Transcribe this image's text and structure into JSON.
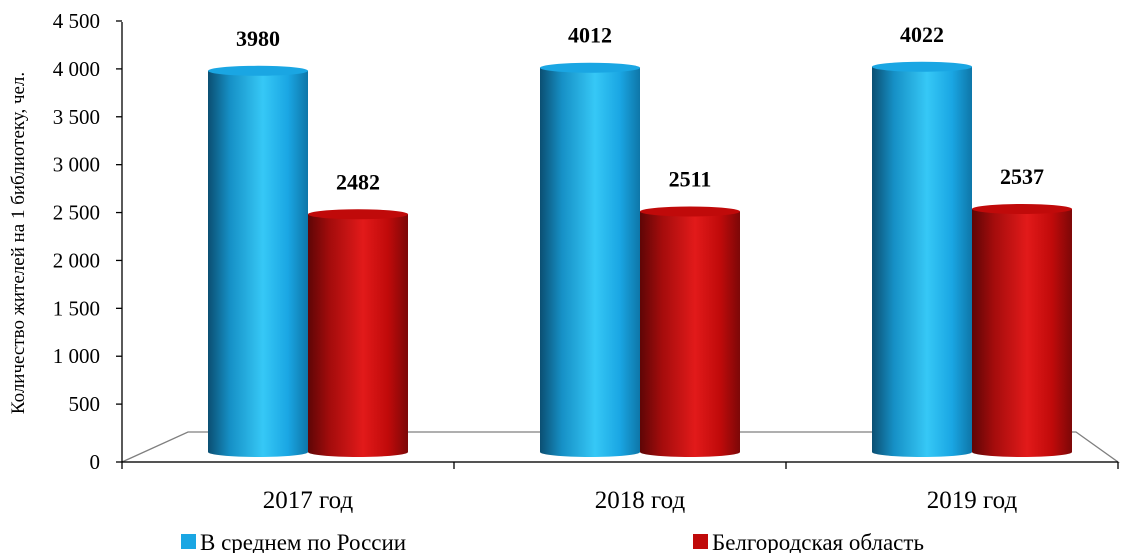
{
  "chart_data": {
    "type": "bar",
    "title": "",
    "xlabel": "",
    "ylabel": "Количество жителей на 1 библиотеку, чел.",
    "ylim": [
      0,
      4500
    ],
    "yticks": [
      0,
      500,
      1000,
      1500,
      2000,
      2500,
      3000,
      3500,
      4000,
      4500
    ],
    "ytick_labels": [
      "0",
      "500",
      "1 000",
      "1 500",
      "2 000",
      "2 500",
      "3 000",
      "3 500",
      "4 000",
      "4 500"
    ],
    "categories": [
      "2017 год",
      "2018 год",
      "2019 год"
    ],
    "series": [
      {
        "name": "В среднем по России",
        "values": [
          3980,
          4012,
          4022
        ],
        "labels": [
          "3980",
          "4012",
          "4022"
        ],
        "color": "#1aa6e3"
      },
      {
        "name": "Белгородская область",
        "values": [
          2482,
          2511,
          2537
        ],
        "labels": [
          "2482",
          "2511",
          "2537"
        ],
        "color": "#c00a0a"
      }
    ],
    "legend_position": "bottom",
    "grid": false,
    "style": "3d-cylinder"
  }
}
